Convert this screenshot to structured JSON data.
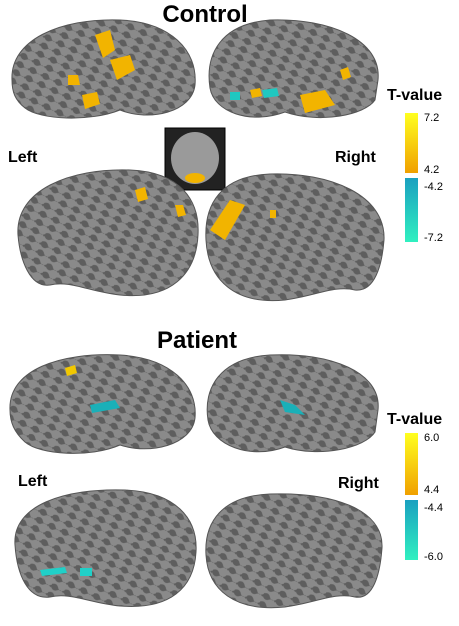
{
  "panels": [
    {
      "title": "Control",
      "left_label": "Left",
      "right_label": "Right",
      "colorbar": {
        "title": "T-value",
        "labels": [
          "7.2",
          "4.2",
          "-4.2",
          "-7.2"
        ]
      }
    },
    {
      "title": "Patient",
      "left_label": "Left",
      "right_label": "Right",
      "colorbar": {
        "title": "T-value",
        "labels": [
          "6.0",
          "4.4",
          "-4.4",
          "-6.0"
        ]
      }
    }
  ]
}
